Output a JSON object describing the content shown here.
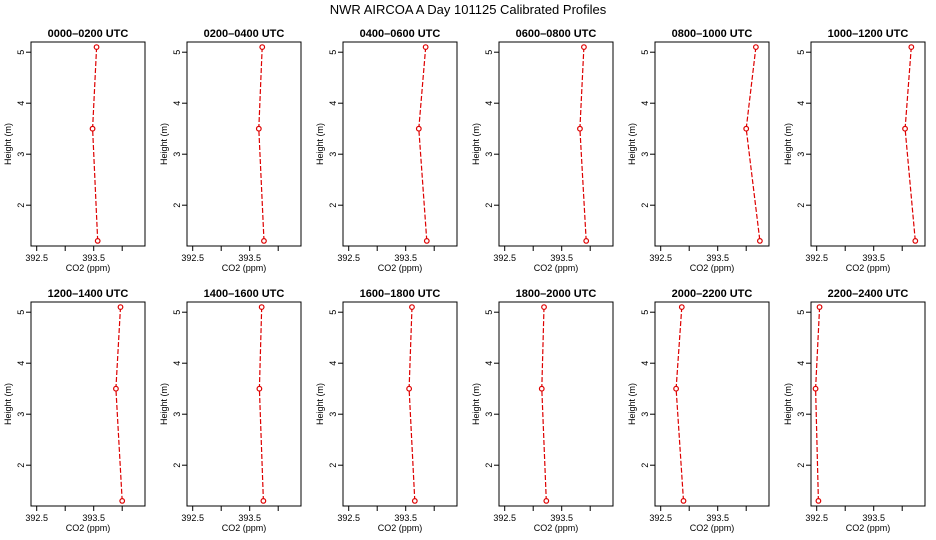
{
  "title": "NWR AIRCOA A  Day 101125  Calibrated Profiles",
  "chart_data": {
    "type": "line",
    "xlabel": "CO2 (ppm)",
    "ylabel": "Height (m)",
    "xlim": [
      392.4,
      394.4
    ],
    "ylim": [
      1.2,
      5.2
    ],
    "x_ticks": [
      392.5,
      393.0,
      393.5,
      394.0
    ],
    "x_tick_labels": [
      "392.5",
      "",
      "393.5",
      ""
    ],
    "y_ticks": [
      2,
      3,
      4,
      5
    ],
    "y_tick_labels": [
      "2",
      "3",
      "4",
      "5"
    ],
    "heights": [
      5.1,
      3.5,
      1.3
    ],
    "line_color": "#dd0000",
    "panels": [
      {
        "title": "0000–0200 UTC",
        "values": [
          393.55,
          393.48,
          393.57
        ]
      },
      {
        "title": "0200–0400 UTC",
        "values": [
          393.72,
          393.66,
          393.75
        ]
      },
      {
        "title": "0400–0600 UTC",
        "values": [
          393.85,
          393.73,
          393.87
        ]
      },
      {
        "title": "0600–0800 UTC",
        "values": [
          393.89,
          393.82,
          393.93
        ]
      },
      {
        "title": "0800–1000 UTC",
        "values": [
          394.17,
          394.0,
          394.24
        ]
      },
      {
        "title": "1000–1200 UTC",
        "values": [
          394.16,
          394.05,
          394.23
        ]
      },
      {
        "title": "1200–1400 UTC",
        "values": [
          393.97,
          393.89,
          394.0
        ]
      },
      {
        "title": "1400–1600 UTC",
        "values": [
          393.71,
          393.67,
          393.74
        ]
      },
      {
        "title": "1600–1800 UTC",
        "values": [
          393.61,
          393.56,
          393.66
        ]
      },
      {
        "title": "1800–2000 UTC",
        "values": [
          393.19,
          393.15,
          393.23
        ]
      },
      {
        "title": "2000–2200 UTC",
        "values": [
          392.87,
          392.77,
          392.9
        ]
      },
      {
        "title": "2200–2400 UTC",
        "values": [
          392.55,
          392.48,
          392.53
        ]
      }
    ]
  }
}
